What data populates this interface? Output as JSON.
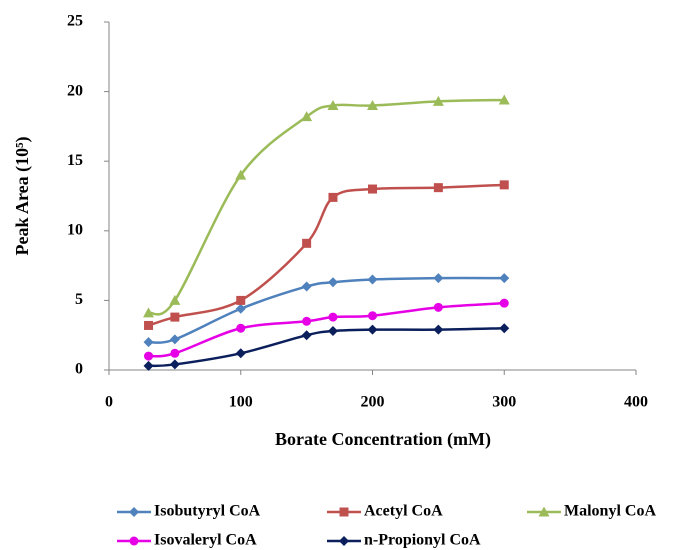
{
  "chart_data": {
    "type": "line",
    "xlabel": "Borate Concentration (mM)",
    "ylabel": "Peak Area (10⁵)",
    "x": [
      30,
      50,
      100,
      150,
      170,
      200,
      250,
      300
    ],
    "series": [
      {
        "name": "Isobutyryl CoA",
        "color": "#4f81bd",
        "marker": "diamond",
        "values": [
          2.0,
          2.2,
          4.4,
          6.0,
          6.3,
          6.5,
          6.6,
          6.6
        ]
      },
      {
        "name": "Acetyl CoA",
        "color": "#c0504d",
        "marker": "square",
        "values": [
          3.2,
          3.8,
          5.0,
          9.1,
          12.4,
          13.0,
          13.1,
          13.3
        ]
      },
      {
        "name": "Malonyl CoA",
        "color": "#9bbb59",
        "marker": "triangle",
        "values": [
          4.1,
          5.0,
          14.0,
          18.2,
          19.0,
          19.0,
          19.3,
          19.4
        ]
      },
      {
        "name": "Isovaleryl CoA",
        "color": "#e600e6",
        "marker": "circle",
        "values": [
          1.0,
          1.2,
          3.0,
          3.5,
          3.8,
          3.9,
          4.5,
          4.8
        ]
      },
      {
        "name": "n-Propionyl CoA",
        "color": "#0b1f5c",
        "marker": "diamond",
        "values": [
          0.3,
          0.4,
          1.2,
          2.5,
          2.8,
          2.9,
          2.9,
          3.0
        ]
      }
    ],
    "xlim": [
      0,
      400
    ],
    "xticks": [
      0,
      100,
      200,
      300,
      400
    ],
    "ylim": [
      0,
      25
    ],
    "yticks": [
      0,
      5,
      10,
      15,
      20,
      25
    ],
    "smooth": true
  }
}
